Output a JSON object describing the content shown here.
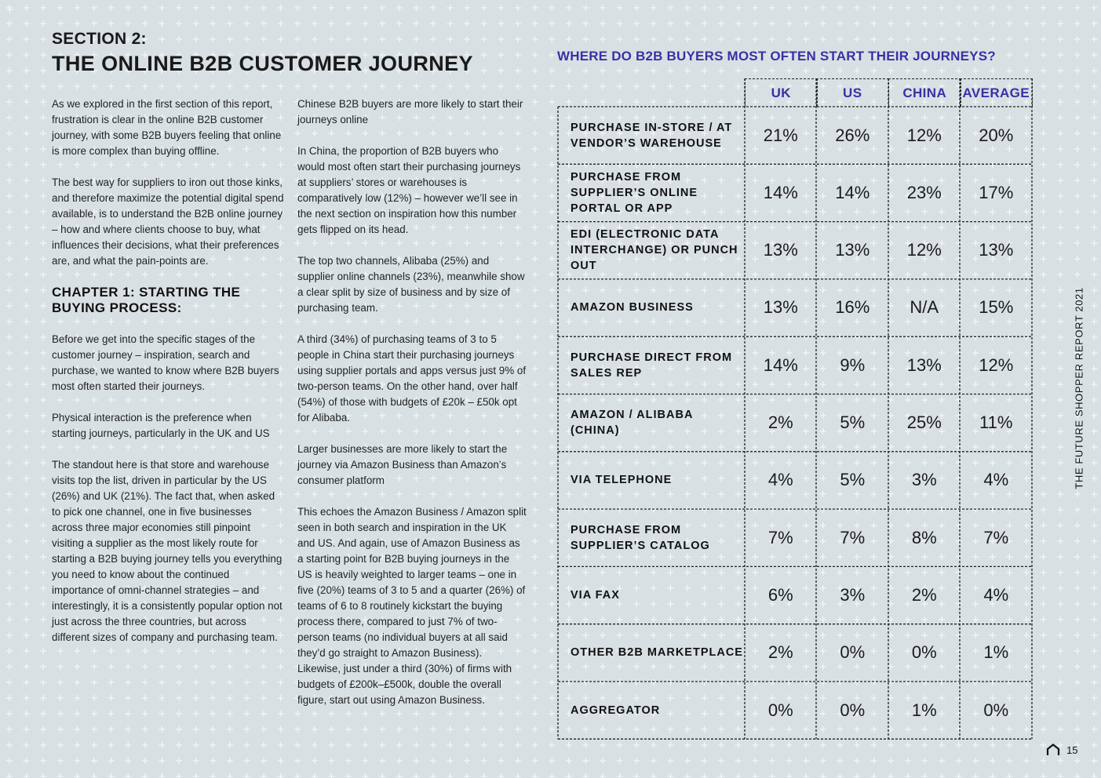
{
  "section_label": "SECTION 2:",
  "section_title": "THE ONLINE B2B CUSTOMER JOURNEY",
  "col1": {
    "p1": "As we explored in the first section of this report, frustration is clear in the online B2B customer journey, with some B2B buyers feeling that online is more complex than buying offline.",
    "p2": "The best way for suppliers to iron out those kinks, and therefore maximize the potential digital spend available, is to understand the B2B online journey – how and where clients choose to buy, what influences their decisions, what their preferences are, and what the pain-points are.",
    "chapter": "CHAPTER 1: STARTING THE BUYING PROCESS:",
    "p3": "Before we get into the specific stages of the customer journey – inspiration, search and purchase, we wanted to know where B2B buyers most often started their journeys.",
    "p4": "Physical interaction is the preference when starting journeys, particularly in the UK and US",
    "p5": "The standout here is that store and warehouse visits top the list, driven in particular by the US (26%) and UK (21%). The fact that, when asked to pick one channel, one in five businesses across three major economies still pinpoint visiting a supplier as the most likely route for starting a B2B buying journey tells you everything you need to know about the continued importance of omni-channel strategies – and interestingly, it is a consistently popular option not just across the three countries, but across different sizes of company and purchasing team."
  },
  "col2": {
    "p1": "Chinese B2B buyers are more likely to start their journeys online",
    "p2": "In China, the proportion of B2B buyers who would most often start their purchasing journeys at suppliers’ stores or warehouses is comparatively low (12%) – however we’ll see in the next section on inspiration how this number gets flipped on its head.",
    "p3": "The top two channels, Alibaba (25%) and supplier online channels (23%), meanwhile show a clear split by size of business and by size of purchasing team.",
    "p4": "A third (34%) of purchasing teams of 3 to 5 people in China start their purchasing journeys using supplier portals and apps versus just 9% of two-person teams. On the other hand, over half (54%) of those with budgets of £20k – £50k opt for Alibaba.",
    "p5": "Larger businesses are more likely to start the journey via Amazon Business than Amazon’s consumer platform",
    "p6": "This echoes the Amazon Business / Amazon split seen in both search and inspiration in the UK and US. And again, use of Amazon Business as a starting point for B2B buying journeys in the US is heavily weighted to larger teams – one in five (20%) teams of 3 to 5 and a quarter (26%) of teams of 6 to 8 routinely kickstart the buying process there, compared to just 7% of two-person teams (no individual buyers at all said they’d go straight to Amazon Business). Likewise, just under a third (30%) of firms with budgets of £200k–£500k, double the overall figure, start out using Amazon Business."
  },
  "table": {
    "title": "WHERE DO B2B BUYERS MOST OFTEN START THEIR JOURNEYS?",
    "headers": [
      "UK",
      "US",
      "CHINA",
      "AVERAGE"
    ],
    "rows": [
      {
        "label": "PURCHASE IN-STORE / AT VENDOR’S WAREHOUSE",
        "values": [
          "21%",
          "26%",
          "12%",
          "20%"
        ]
      },
      {
        "label": "PURCHASE FROM SUPPLIER’S ONLINE PORTAL OR APP",
        "values": [
          "14%",
          "14%",
          "23%",
          "17%"
        ]
      },
      {
        "label": "EDI (ELECTRONIC DATA INTERCHANGE) OR PUNCH OUT",
        "values": [
          "13%",
          "13%",
          "12%",
          "13%"
        ]
      },
      {
        "label": "AMAZON BUSINESS",
        "values": [
          "13%",
          "16%",
          "N/A",
          "15%"
        ]
      },
      {
        "label": "PURCHASE DIRECT FROM SALES REP",
        "values": [
          "14%",
          "9%",
          "13%",
          "12%"
        ]
      },
      {
        "label": "AMAZON / ALIBABA (CHINA)",
        "values": [
          "2%",
          "5%",
          "25%",
          "11%"
        ]
      },
      {
        "label": "VIA TELEPHONE",
        "values": [
          "4%",
          "5%",
          "3%",
          "4%"
        ]
      },
      {
        "label": "PURCHASE FROM SUPPLIER’S CATALOG",
        "values": [
          "7%",
          "7%",
          "8%",
          "7%"
        ]
      },
      {
        "label": "VIA FAX",
        "values": [
          "6%",
          "3%",
          "2%",
          "4%"
        ]
      },
      {
        "label": "OTHER B2B MARKETPLACE",
        "values": [
          "2%",
          "0%",
          "0%",
          "1%"
        ]
      },
      {
        "label": "AGGREGATOR",
        "values": [
          "0%",
          "0%",
          "1%",
          "0%"
        ]
      }
    ]
  },
  "side_text": "THE FUTURE SHOPPER REPORT 2021",
  "page_number": "15",
  "colors": {
    "accent": "#3b2fa6",
    "background": "#d9e0e3",
    "text": "#1a1a1a"
  },
  "icons": {
    "footer": "house-outline-icon"
  }
}
